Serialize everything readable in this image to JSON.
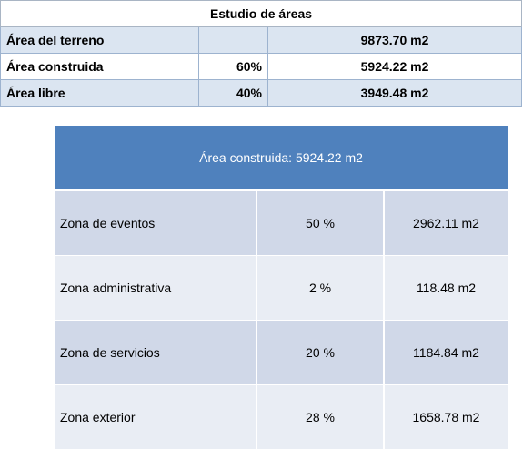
{
  "summary": {
    "title": "Estudio de áreas",
    "rows": [
      {
        "label": "Área del terreno",
        "pct": "",
        "value": "9873.70 m2"
      },
      {
        "label": "Área construida",
        "pct": "60%",
        "value": "5924.22 m2"
      },
      {
        "label": "Área libre",
        "pct": "40%",
        "value": "3949.48 m2"
      }
    ]
  },
  "breakdown": {
    "header": "Área construida:  5924.22 m2",
    "zones": [
      {
        "name": "Zona de eventos",
        "pct": "50 %",
        "value": "2962.11 m2"
      },
      {
        "name": "Zona administrativa",
        "pct": "2 %",
        "value": "118.48 m2"
      },
      {
        "name": "Zona de servicios",
        "pct": "20 %",
        "value": "1184.84 m2"
      },
      {
        "name": "Zona exterior",
        "pct": "28 %",
        "value": "1658.78 m2"
      }
    ]
  }
}
